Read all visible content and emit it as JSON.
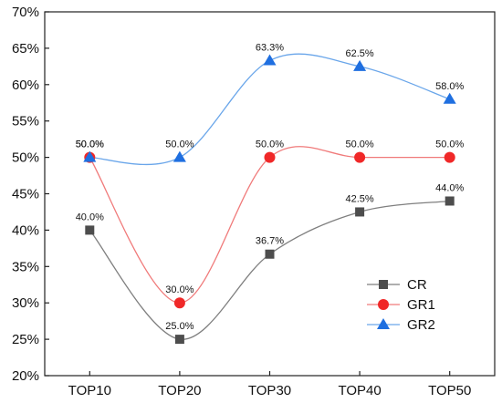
{
  "chart_data": {
    "type": "line",
    "title": "",
    "xlabel": "",
    "ylabel": "",
    "categories": [
      "TOP10",
      "TOP20",
      "TOP30",
      "TOP40",
      "TOP50"
    ],
    "ylim": [
      20,
      70
    ],
    "yticks": [
      20,
      25,
      30,
      35,
      40,
      45,
      50,
      55,
      60,
      65,
      70
    ],
    "ytick_labels": [
      "20%",
      "25%",
      "30%",
      "35%",
      "40%",
      "45%",
      "50%",
      "55%",
      "60%",
      "65%",
      "70%"
    ],
    "grid": false,
    "legend_position": "bottom-right",
    "series": [
      {
        "name": "CR",
        "marker": "square",
        "marker_color": "#4d4d4d",
        "line_color": "#7f7f7f",
        "values": [
          40.0,
          25.0,
          36.7,
          42.5,
          44.0
        ],
        "labels": [
          "40.0%",
          "25.0%",
          "36.7%",
          "42.5%",
          "44.0%"
        ]
      },
      {
        "name": "GR1",
        "marker": "circle",
        "marker_color": "#f02828",
        "line_color": "#f07a7a",
        "values": [
          50.0,
          30.0,
          50.0,
          50.0,
          50.0
        ],
        "labels": [
          "50.0%",
          "30.0%",
          "50.0%",
          "50.0%",
          "50.0%"
        ]
      },
      {
        "name": "GR2",
        "marker": "triangle",
        "marker_color": "#1f6fe0",
        "line_color": "#6aa6ea",
        "values": [
          50.0,
          50.0,
          63.3,
          62.5,
          58.0
        ],
        "labels": [
          "50.0%",
          "50.0%",
          "63.3%",
          "62.5%",
          "58.0%"
        ]
      }
    ]
  }
}
